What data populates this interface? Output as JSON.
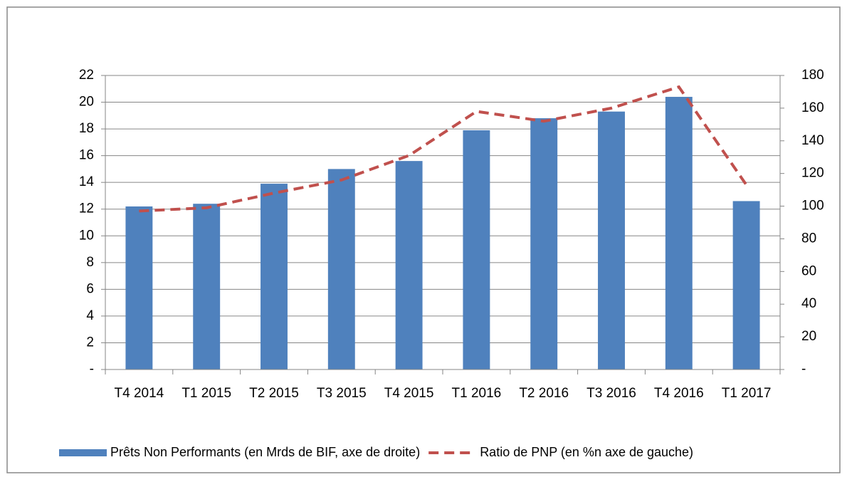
{
  "chart_data": {
    "type": "bar",
    "categories": [
      "T4 2014",
      "T1 2015",
      "T2 2015",
      "T3 2015",
      "T4 2015",
      "T1 2016",
      "T2 2016",
      "T3 2016",
      "T4 2016",
      "T1 2017"
    ],
    "series": [
      {
        "name": "Prêts Non Performants (en Mrds de BIF, axe de droite)",
        "type": "bar",
        "color": "#4f81bd",
        "values": [
          12.2,
          12.4,
          13.9,
          15.0,
          15.6,
          17.9,
          18.8,
          19.3,
          20.4,
          12.6
        ]
      },
      {
        "name": "Ratio de PNP (en %n axe de gauche)",
        "type": "line",
        "color": "#c0504d",
        "axis": "y2",
        "dashed": true,
        "values": [
          97,
          99,
          108,
          116,
          131,
          158,
          152,
          160,
          173,
          113
        ]
      }
    ],
    "ylim": [
      0,
      22
    ],
    "yticks": [
      {
        "value": 0,
        "label": "-"
      },
      2,
      4,
      6,
      8,
      10,
      12,
      14,
      16,
      18,
      20,
      22
    ],
    "y2lim": [
      0,
      180
    ],
    "y2ticks": [
      {
        "value": 0,
        "label": "-"
      },
      20,
      40,
      60,
      80,
      100,
      120,
      140,
      160,
      180
    ],
    "grid": true,
    "legend": "bottom"
  }
}
